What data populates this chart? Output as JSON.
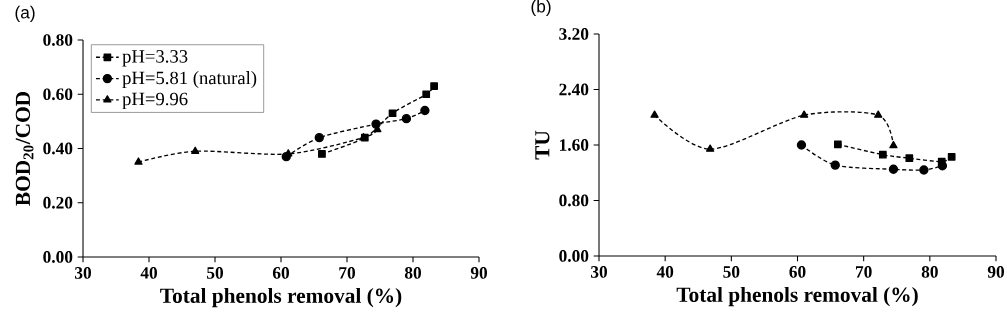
{
  "chart_data": [
    {
      "type": "line",
      "title": "(a)",
      "xlabel": "Total phenols removal (%)",
      "ylabel": "BOD$_{20}$/COD",
      "xlim": [
        30,
        90
      ],
      "xticks": [
        30,
        40,
        50,
        60,
        70,
        80,
        90
      ],
      "ylim": [
        0,
        0.8
      ],
      "yticks": [
        {
          "value": 0,
          "label": "0.00"
        },
        {
          "value": 0.2,
          "label": "0.20"
        },
        {
          "value": 0.4,
          "label": "0.40"
        },
        {
          "value": 0.6,
          "label": "0.60"
        },
        {
          "value": 0.8,
          "label": "0.80"
        }
      ],
      "line_style": "dashed",
      "legend": "top left",
      "grid": false,
      "series": [
        {
          "name": "pH=3.33",
          "color": "#000000",
          "marker": "square",
          "x": [
            66.2,
            72.7,
            76.9,
            82.0,
            83.2
          ],
          "values": [
            0.38,
            0.44,
            0.53,
            0.6,
            0.63
          ]
        },
        {
          "name": "pH=5.81 (natural)",
          "color": "#000000",
          "marker": "circle",
          "x": [
            60.8,
            65.8,
            74.4,
            79.0,
            81.8
          ],
          "values": [
            0.37,
            0.44,
            0.49,
            0.51,
            0.54
          ]
        },
        {
          "name": "pH=9.96",
          "color": "#000000",
          "marker": "triangle",
          "x": [
            38.4,
            47.0,
            61.1,
            72.5,
            74.6
          ],
          "values": [
            0.35,
            0.39,
            0.38,
            0.44,
            0.47
          ]
        }
      ]
    },
    {
      "type": "line",
      "title": "(b)",
      "xlabel": "Total phenols removal (%)",
      "ylabel": "TU",
      "xlim": [
        30,
        90
      ],
      "xticks": [
        30,
        40,
        50,
        60,
        70,
        80,
        90
      ],
      "ylim": [
        0,
        3.2
      ],
      "yticks": [
        {
          "value": 0,
          "label": "0.00"
        },
        {
          "value": 0.8,
          "label": "0.80"
        },
        {
          "value": 1.6,
          "label": "1.60"
        },
        {
          "value": 2.4,
          "label": "2.40"
        },
        {
          "value": 3.2,
          "label": "3.20"
        }
      ],
      "line_style": "dashed",
      "legend": false,
      "grid": false,
      "series": [
        {
          "color": "#000000",
          "marker": "square",
          "x": [
            66.1,
            72.9,
            76.9,
            81.8,
            83.3
          ],
          "values": [
            1.61,
            1.46,
            1.41,
            1.36,
            1.43
          ]
        },
        {
          "color": "#000000",
          "marker": "circle",
          "x": [
            60.6,
            65.7,
            74.5,
            79.1,
            81.9
          ],
          "values": [
            1.6,
            1.31,
            1.25,
            1.24,
            1.3
          ]
        },
        {
          "color": "#000000",
          "marker": "triangle",
          "x": [
            38.4,
            46.8,
            61.0,
            72.2,
            74.5
          ],
          "values": [
            2.03,
            1.54,
            2.03,
            2.03,
            1.59
          ]
        }
      ]
    }
  ]
}
